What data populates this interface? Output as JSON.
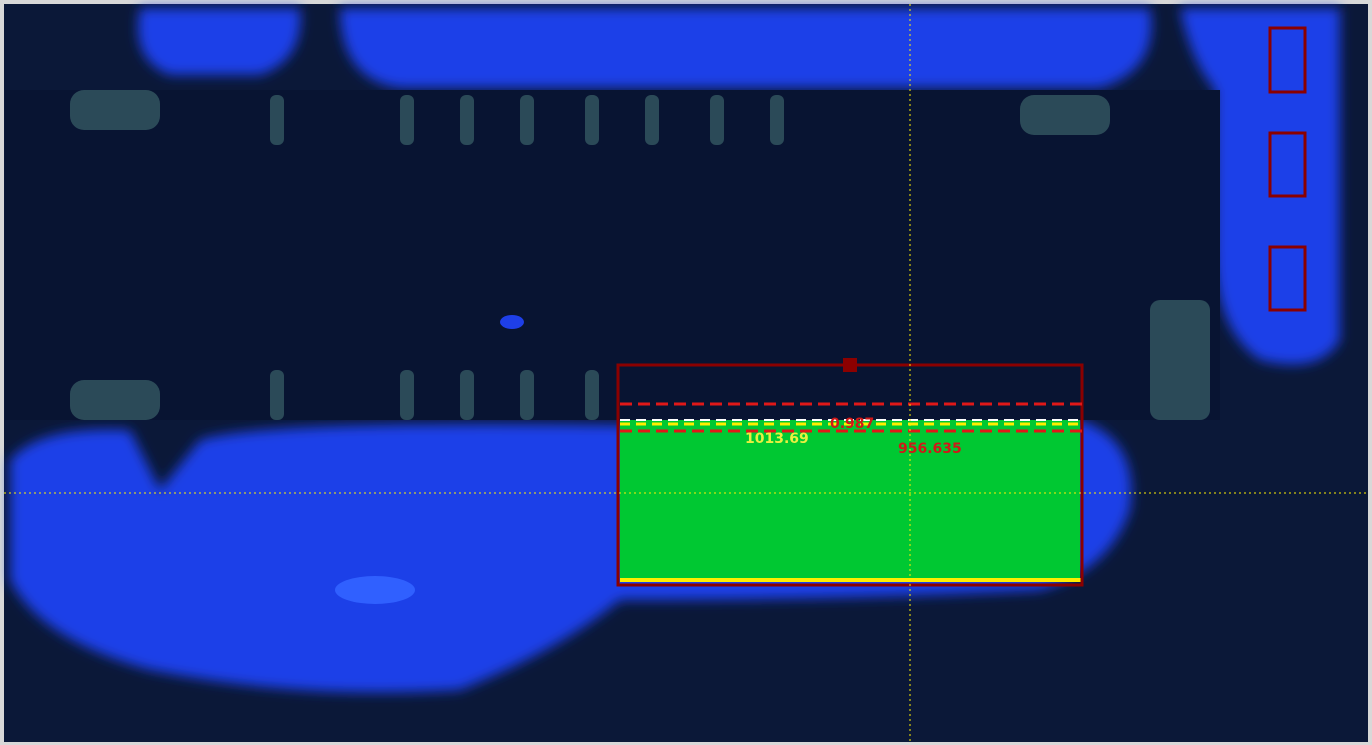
{
  "measurements": [
    {
      "label": "1013.69",
      "color": "#e8f040"
    },
    {
      "label": "0.987",
      "color": "#d01818"
    },
    {
      "label": "956.635",
      "color": "#d01818"
    }
  ]
}
